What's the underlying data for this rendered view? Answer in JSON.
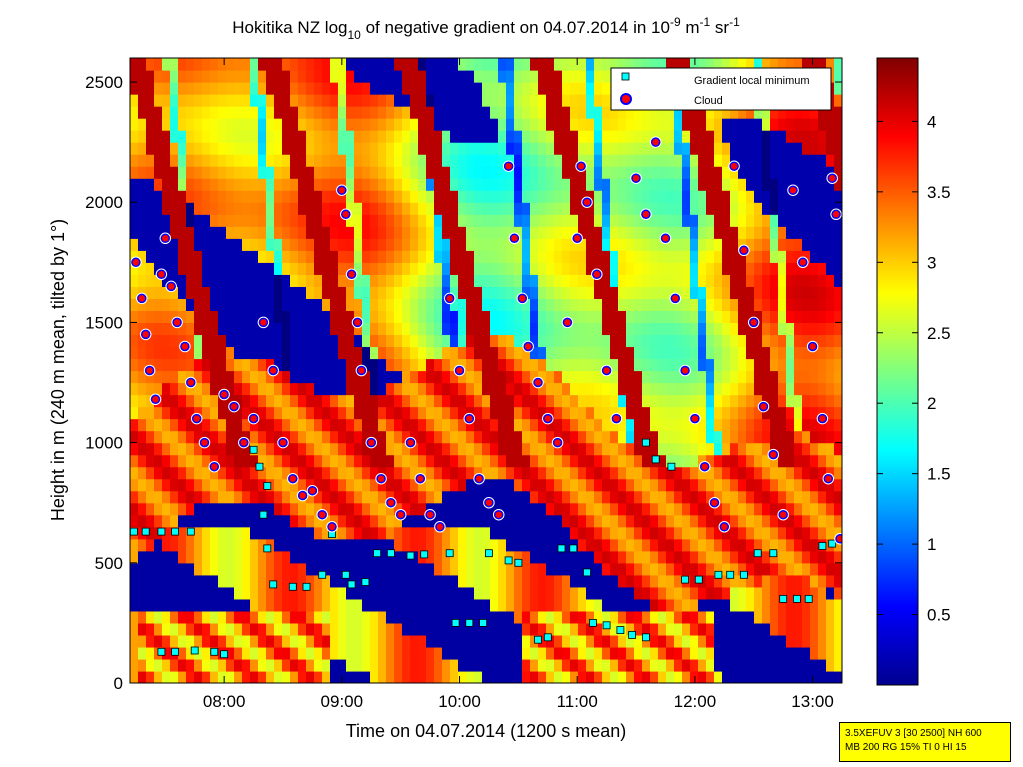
{
  "title": {
    "main": "Hokitika NZ log",
    "sub1": "10",
    "mid": " of negative gradient on 04.07.2014 in 10",
    "sup1": "-9",
    "unit1": " m",
    "sup2": "-1",
    "unit2": " sr",
    "sup3": "-1"
  },
  "axes": {
    "xlabel": "Time on 04.07.2014 (1200 s mean)",
    "ylabel": "Height in m (240 m mean, tilted by 1°)"
  },
  "legend": {
    "items": [
      {
        "label": "Gradient local minimum",
        "marker": "square",
        "color": "#00ffff"
      },
      {
        "label": "Cloud",
        "marker": "circle",
        "color": "#ff0000"
      }
    ],
    "placement": "top-right"
  },
  "info_box": {
    "line1": "3.5XEFUV 3 [30 2500] NH 600",
    "line2": "MB 200 RG 15% TI 0 HI 15",
    "color": "#ffff00"
  },
  "chart_data": {
    "type": "heatmap",
    "x_axis": {
      "range": [
        "07:12",
        "13:15"
      ],
      "ticks": [
        "08:00",
        "09:00",
        "10:00",
        "11:00",
        "12:00",
        "13:00"
      ]
    },
    "y_axis": {
      "range": [
        0,
        2600
      ],
      "ticks": [
        0,
        500,
        1000,
        1500,
        2000,
        2500
      ]
    },
    "colorbar": {
      "range": [
        0,
        4.45
      ],
      "ticks": [
        0.5,
        1,
        1.5,
        2,
        2.5,
        3,
        3.5,
        4
      ],
      "colormap": "jet"
    },
    "series": [
      {
        "name": "Gradient local minimum",
        "marker": "square",
        "points": [
          [
            "07:14",
            630
          ],
          [
            "07:20",
            630
          ],
          [
            "07:28",
            630
          ],
          [
            "07:35",
            630
          ],
          [
            "07:43",
            630
          ],
          [
            "07:28",
            130
          ],
          [
            "07:35",
            130
          ],
          [
            "07:45",
            135
          ],
          [
            "07:55",
            130
          ],
          [
            "08:00",
            120
          ],
          [
            "08:15",
            970
          ],
          [
            "08:18",
            900
          ],
          [
            "08:22",
            820
          ],
          [
            "08:20",
            700
          ],
          [
            "08:22",
            560
          ],
          [
            "08:25",
            410
          ],
          [
            "08:35",
            400
          ],
          [
            "08:42",
            400
          ],
          [
            "08:50",
            450
          ],
          [
            "08:55",
            620
          ],
          [
            "09:02",
            450
          ],
          [
            "09:05",
            410
          ],
          [
            "09:12",
            420
          ],
          [
            "09:18",
            540
          ],
          [
            "09:25",
            540
          ],
          [
            "09:35",
            530
          ],
          [
            "09:42",
            535
          ],
          [
            "09:55",
            540
          ],
          [
            "09:58",
            250
          ],
          [
            "10:05",
            250
          ],
          [
            "10:12",
            250
          ],
          [
            "10:15",
            540
          ],
          [
            "10:25",
            510
          ],
          [
            "10:30",
            500
          ],
          [
            "10:40",
            180
          ],
          [
            "10:45",
            190
          ],
          [
            "10:52",
            560
          ],
          [
            "10:58",
            560
          ],
          [
            "11:05",
            460
          ],
          [
            "11:08",
            250
          ],
          [
            "11:15",
            240
          ],
          [
            "11:22",
            220
          ],
          [
            "11:28",
            200
          ],
          [
            "11:35",
            190
          ],
          [
            "11:40",
            930
          ],
          [
            "11:35",
            1000
          ],
          [
            "11:48",
            900
          ],
          [
            "11:55",
            430
          ],
          [
            "12:02",
            430
          ],
          [
            "12:12",
            450
          ],
          [
            "12:18",
            450
          ],
          [
            "12:25",
            450
          ],
          [
            "12:32",
            540
          ],
          [
            "12:40",
            540
          ],
          [
            "12:45",
            350
          ],
          [
            "12:52",
            350
          ],
          [
            "12:58",
            350
          ],
          [
            "13:05",
            570
          ],
          [
            "13:10",
            580
          ]
        ]
      },
      {
        "name": "Cloud",
        "marker": "circle",
        "points": [
          [
            "07:15",
            1750
          ],
          [
            "07:18",
            1600
          ],
          [
            "07:20",
            1450
          ],
          [
            "07:22",
            1300
          ],
          [
            "07:25",
            1180
          ],
          [
            "07:28",
            1700
          ],
          [
            "07:30",
            1850
          ],
          [
            "07:33",
            1650
          ],
          [
            "07:36",
            1500
          ],
          [
            "07:40",
            1400
          ],
          [
            "07:43",
            1250
          ],
          [
            "07:46",
            1100
          ],
          [
            "07:50",
            1000
          ],
          [
            "07:55",
            900
          ],
          [
            "08:00",
            1200
          ],
          [
            "08:05",
            1150
          ],
          [
            "08:10",
            1000
          ],
          [
            "08:15",
            1100
          ],
          [
            "08:20",
            1500
          ],
          [
            "08:25",
            1300
          ],
          [
            "08:30",
            1000
          ],
          [
            "08:35",
            850
          ],
          [
            "08:40",
            780
          ],
          [
            "08:45",
            800
          ],
          [
            "08:50",
            700
          ],
          [
            "08:55",
            650
          ],
          [
            "09:00",
            2050
          ],
          [
            "09:02",
            1950
          ],
          [
            "09:05",
            1700
          ],
          [
            "09:08",
            1500
          ],
          [
            "09:10",
            1300
          ],
          [
            "09:15",
            1000
          ],
          [
            "09:20",
            850
          ],
          [
            "09:25",
            750
          ],
          [
            "09:30",
            700
          ],
          [
            "09:35",
            1000
          ],
          [
            "09:40",
            850
          ],
          [
            "09:45",
            700
          ],
          [
            "09:50",
            650
          ],
          [
            "09:55",
            1600
          ],
          [
            "10:00",
            1300
          ],
          [
            "10:05",
            1100
          ],
          [
            "10:10",
            850
          ],
          [
            "10:15",
            750
          ],
          [
            "10:20",
            700
          ],
          [
            "10:25",
            2150
          ],
          [
            "10:28",
            1850
          ],
          [
            "10:32",
            1600
          ],
          [
            "10:35",
            1400
          ],
          [
            "10:40",
            1250
          ],
          [
            "10:45",
            1100
          ],
          [
            "10:50",
            1000
          ],
          [
            "10:55",
            1500
          ],
          [
            "11:00",
            1850
          ],
          [
            "11:02",
            2150
          ],
          [
            "11:05",
            2000
          ],
          [
            "11:10",
            1700
          ],
          [
            "11:15",
            1300
          ],
          [
            "11:20",
            1100
          ],
          [
            "11:30",
            2100
          ],
          [
            "11:35",
            1950
          ],
          [
            "11:40",
            2250
          ],
          [
            "11:45",
            1850
          ],
          [
            "11:50",
            1600
          ],
          [
            "11:55",
            1300
          ],
          [
            "12:00",
            1100
          ],
          [
            "12:05",
            900
          ],
          [
            "12:10",
            750
          ],
          [
            "12:15",
            650
          ],
          [
            "12:20",
            2150
          ],
          [
            "12:25",
            1800
          ],
          [
            "12:30",
            1500
          ],
          [
            "12:35",
            1150
          ],
          [
            "12:40",
            950
          ],
          [
            "12:45",
            700
          ],
          [
            "12:50",
            2050
          ],
          [
            "12:55",
            1750
          ],
          [
            "13:00",
            1400
          ],
          [
            "13:05",
            1100
          ],
          [
            "13:08",
            850
          ],
          [
            "13:10",
            2100
          ],
          [
            "13:12",
            1950
          ],
          [
            "13:14",
            600
          ]
        ]
      }
    ]
  }
}
